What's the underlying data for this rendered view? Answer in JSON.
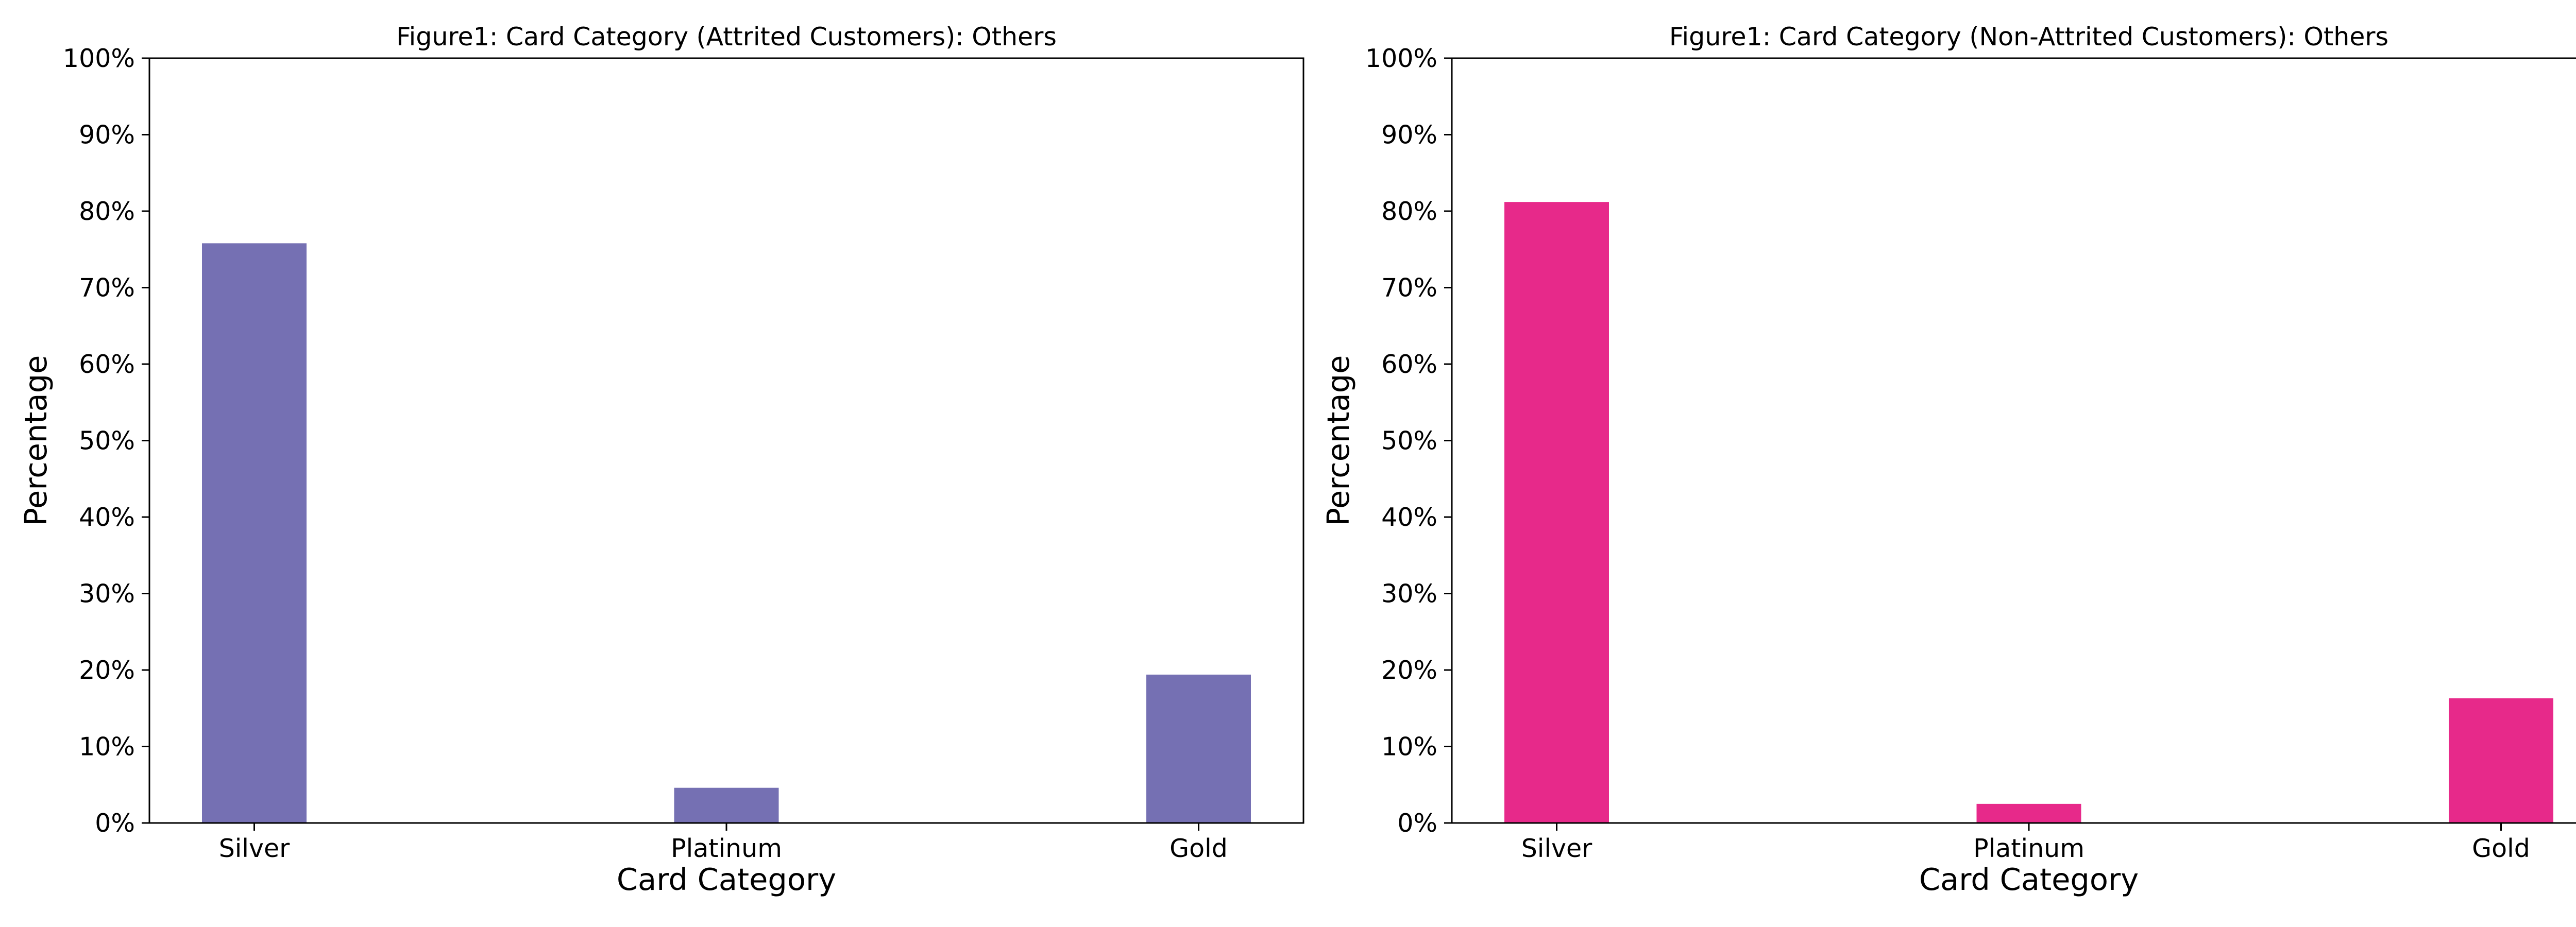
{
  "chart_data": [
    {
      "type": "bar",
      "title": "Figure1: Card Category (Attrited Customers): Others",
      "xlabel": "Card Category",
      "ylabel": "Percentage",
      "categories": [
        "Silver",
        "Platinum",
        "Gold"
      ],
      "series": [
        {
          "values": [
            75.8,
            4.6,
            19.4
          ],
          "color": "#7570b3"
        }
      ],
      "ylim": [
        0,
        100
      ],
      "yticks": [
        "0%",
        "10%",
        "20%",
        "30%",
        "40%",
        "50%",
        "60%",
        "70%",
        "80%",
        "90%",
        "100%"
      ],
      "grid": false,
      "legend": "none"
    },
    {
      "type": "bar",
      "title": "Figure1: Card Category (Non-Attrited Customers): Others",
      "xlabel": "Card Category",
      "ylabel": "Percentage",
      "categories": [
        "Silver",
        "Platinum",
        "Gold"
      ],
      "series": [
        {
          "values": [
            81.2,
            2.5,
            16.3
          ],
          "color": "#e7298a"
        }
      ],
      "ylim": [
        0,
        100
      ],
      "yticks": [
        "0%",
        "10%",
        "20%",
        "30%",
        "40%",
        "50%",
        "60%",
        "70%",
        "80%",
        "90%",
        "100%"
      ],
      "grid": false,
      "legend": "none"
    }
  ]
}
